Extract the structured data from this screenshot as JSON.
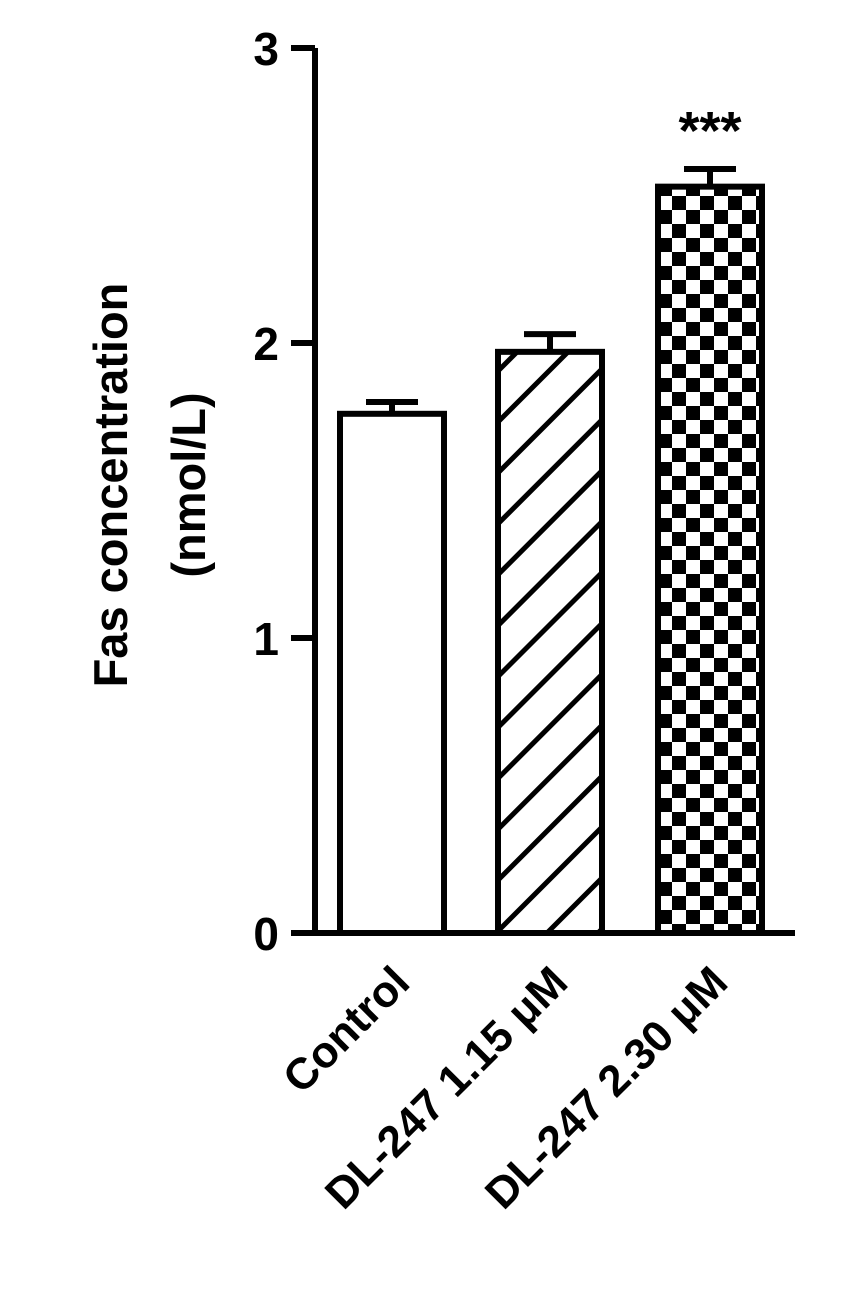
{
  "chart_data": {
    "type": "bar",
    "title": "",
    "ylabel_lines": [
      "Fas concentration",
      "(nmol/L)"
    ],
    "xlabel": "",
    "ylim": [
      0,
      3
    ],
    "yticks": [
      0,
      1,
      2,
      3
    ],
    "categories": [
      "Control",
      "DL-247 1.15 μM",
      "DL-247 2.30 μM"
    ],
    "values": [
      1.76,
      1.97,
      2.53
    ],
    "errors": [
      0.04,
      0.06,
      0.06
    ],
    "fill_patterns": [
      "solid-white",
      "diagonal-hatch",
      "checkerboard"
    ],
    "annotations": [
      "",
      "",
      "***"
    ],
    "grid": false,
    "colors": {
      "stroke": "#000000",
      "fill": "#ffffff"
    }
  }
}
